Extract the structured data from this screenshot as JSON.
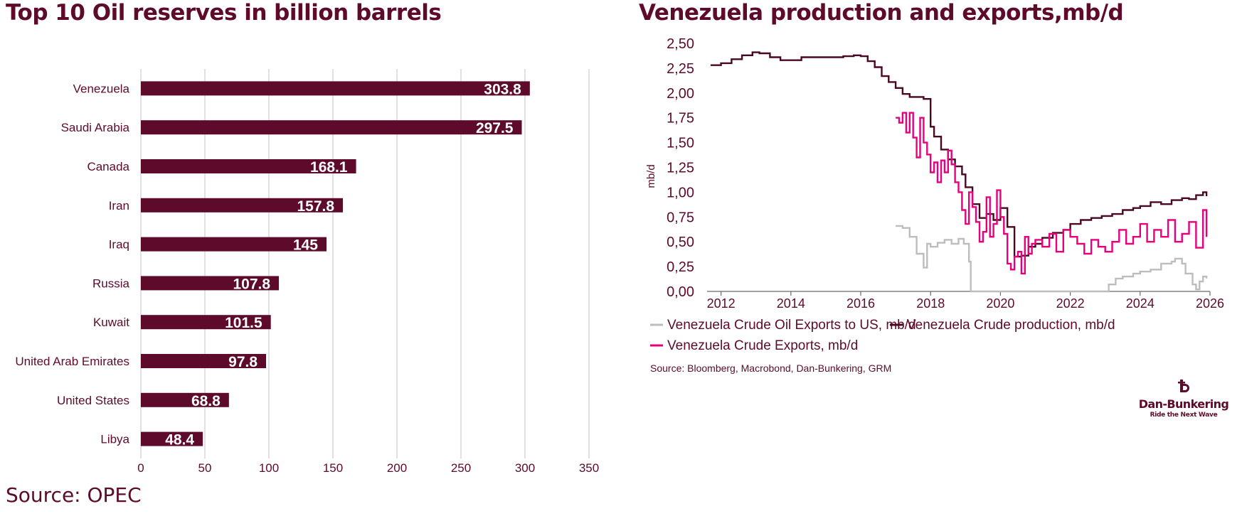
{
  "colors": {
    "brand": "#5e0a2a",
    "bar": "#5e0a2a",
    "production": "#4a0722",
    "exports": "#e6007e",
    "exports_us": "#bdbdbd",
    "grid": "#d4d4d4"
  },
  "left": {
    "title": "Top 10 Oil reserves in billion barrels",
    "source": "Source: OPEC"
  },
  "right": {
    "title": "Venezuela production and exports,mb/d",
    "source": "Source: Bloomberg, Macrobond, Dan-Bunkering, GRM"
  },
  "logo": {
    "name": "Dan-Bunkering",
    "tagline": "Ride the Next Wave",
    "icon": "anchor-d-icon"
  },
  "chart_data": [
    {
      "type": "bar",
      "orientation": "horizontal",
      "title": "Top 10 Oil reserves in billion barrels",
      "categories": [
        "Venezuela",
        "Saudi Arabia",
        "Canada",
        "Iran",
        "Iraq",
        "Russia",
        "Kuwait",
        "United Arab Emirates",
        "United States",
        "Libya"
      ],
      "values": [
        303.8,
        297.5,
        168.1,
        157.8,
        145,
        107.8,
        101.5,
        97.8,
        68.8,
        48.4
      ],
      "value_labels": [
        "303.8",
        "297.5",
        "168.1",
        "157.8",
        "145",
        "107.8",
        "101.5",
        "97.8",
        "68.8",
        "48.4"
      ],
      "xlim": [
        0,
        350
      ],
      "xticks": [
        "0",
        "50",
        "100",
        "150",
        "200",
        "250",
        "300",
        "350"
      ],
      "xlabel": "",
      "ylabel": "",
      "grid": true
    },
    {
      "type": "line",
      "title": "Venezuela production and exports,mb/d",
      "ylabel": "mb/d",
      "xlabel": "",
      "xlim": [
        2011.6,
        2026.0
      ],
      "ylim": [
        0,
        2.5
      ],
      "xticks": [
        "2012",
        "2014",
        "2016",
        "2018",
        "2020",
        "2022",
        "2024",
        "2026"
      ],
      "yticks": [
        "0,00",
        "0,25",
        "0,50",
        "0,75",
        "1,00",
        "1,25",
        "1,50",
        "1,75",
        "2,00",
        "2,25",
        "2,50"
      ],
      "grid": false,
      "legend_position": "bottom",
      "series": [
        {
          "name": "Venezuela Crude Oil Exports to US, mb/d",
          "color_key": "exports_us",
          "step": true,
          "x": [
            2017.0,
            2017.2,
            2017.4,
            2017.6,
            2017.8,
            2017.9,
            2018.0,
            2018.2,
            2018.4,
            2018.6,
            2018.8,
            2018.95,
            2019.1,
            2019.15,
            2020.0,
            2021.0,
            2022.0,
            2023.0,
            2023.1,
            2023.3,
            2023.5,
            2023.8,
            2024.0,
            2024.3,
            2024.6,
            2024.9,
            2025.0,
            2025.2,
            2025.3,
            2025.5,
            2025.6,
            2025.7,
            2025.8,
            2025.9
          ],
          "y": [
            0.66,
            0.64,
            0.55,
            0.38,
            0.24,
            0.48,
            0.45,
            0.49,
            0.52,
            0.48,
            0.53,
            0.48,
            0.3,
            0.0,
            0.0,
            0.0,
            0.0,
            0.0,
            0.07,
            0.13,
            0.15,
            0.18,
            0.2,
            0.22,
            0.28,
            0.3,
            0.33,
            0.28,
            0.18,
            0.07,
            0.02,
            0.1,
            0.15,
            0.13
          ]
        },
        {
          "name": "Venezuela Crude production, mb/d",
          "color_key": "production",
          "step": true,
          "x": [
            2011.7,
            2012.0,
            2012.3,
            2012.6,
            2012.9,
            2013.1,
            2013.4,
            2013.7,
            2014.0,
            2014.3,
            2014.6,
            2014.9,
            2015.2,
            2015.5,
            2015.8,
            2016.0,
            2016.2,
            2016.4,
            2016.6,
            2016.8,
            2017.0,
            2017.2,
            2017.4,
            2017.6,
            2017.8,
            2018.0,
            2018.1,
            2018.3,
            2018.5,
            2018.7,
            2018.9,
            2019.0,
            2019.2,
            2019.4,
            2019.6,
            2019.8,
            2020.0,
            2020.2,
            2020.4,
            2020.6,
            2020.8,
            2021.0,
            2021.2,
            2021.5,
            2021.8,
            2022.0,
            2022.3,
            2022.6,
            2022.9,
            2023.2,
            2023.5,
            2023.8,
            2024.0,
            2024.3,
            2024.6,
            2024.9,
            2025.2,
            2025.4,
            2025.6,
            2025.8,
            2025.9
          ],
          "y": [
            2.28,
            2.3,
            2.34,
            2.38,
            2.41,
            2.4,
            2.36,
            2.33,
            2.33,
            2.36,
            2.36,
            2.36,
            2.36,
            2.37,
            2.38,
            2.37,
            2.32,
            2.26,
            2.17,
            2.11,
            2.05,
            1.99,
            1.96,
            1.96,
            1.94,
            1.66,
            1.56,
            1.43,
            1.33,
            1.26,
            1.18,
            1.05,
            0.88,
            0.74,
            0.78,
            0.72,
            0.84,
            0.65,
            0.35,
            0.36,
            0.45,
            0.48,
            0.54,
            0.59,
            0.62,
            0.68,
            0.72,
            0.74,
            0.76,
            0.78,
            0.82,
            0.84,
            0.86,
            0.9,
            0.88,
            0.92,
            0.94,
            0.93,
            0.97,
            1.0,
            0.96
          ]
        },
        {
          "name": "Venezuela Crude Exports, mb/d",
          "color_key": "exports",
          "step": true,
          "x": [
            2017.0,
            2017.1,
            2017.2,
            2017.3,
            2017.4,
            2017.5,
            2017.6,
            2017.7,
            2017.8,
            2017.9,
            2018.0,
            2018.1,
            2018.2,
            2018.3,
            2018.4,
            2018.5,
            2018.6,
            2018.7,
            2018.8,
            2018.9,
            2019.0,
            2019.1,
            2019.2,
            2019.3,
            2019.4,
            2019.5,
            2019.6,
            2019.7,
            2019.8,
            2019.9,
            2020.0,
            2020.1,
            2020.2,
            2020.3,
            2020.4,
            2020.5,
            2020.6,
            2020.7,
            2020.8,
            2020.9,
            2021.0,
            2021.2,
            2021.4,
            2021.6,
            2021.8,
            2022.0,
            2022.2,
            2022.4,
            2022.6,
            2022.8,
            2023.0,
            2023.2,
            2023.4,
            2023.6,
            2023.8,
            2024.0,
            2024.2,
            2024.4,
            2024.6,
            2024.8,
            2025.0,
            2025.2,
            2025.4,
            2025.6,
            2025.8,
            2025.9
          ],
          "y": [
            1.75,
            1.7,
            1.8,
            1.6,
            1.8,
            1.55,
            1.35,
            1.75,
            1.5,
            1.38,
            1.2,
            1.3,
            1.1,
            1.32,
            1.2,
            1.42,
            1.28,
            1.1,
            1.0,
            0.82,
            0.68,
            1.0,
            0.85,
            0.7,
            0.5,
            0.6,
            0.95,
            0.55,
            0.68,
            1.02,
            0.75,
            0.58,
            0.28,
            0.22,
            0.35,
            0.4,
            0.18,
            0.55,
            0.38,
            0.48,
            0.52,
            0.45,
            0.58,
            0.4,
            0.62,
            0.55,
            0.48,
            0.38,
            0.52,
            0.45,
            0.4,
            0.5,
            0.62,
            0.48,
            0.55,
            0.68,
            0.5,
            0.62,
            0.55,
            0.72,
            0.5,
            0.58,
            0.7,
            0.44,
            0.82,
            0.55
          ]
        }
      ]
    }
  ]
}
